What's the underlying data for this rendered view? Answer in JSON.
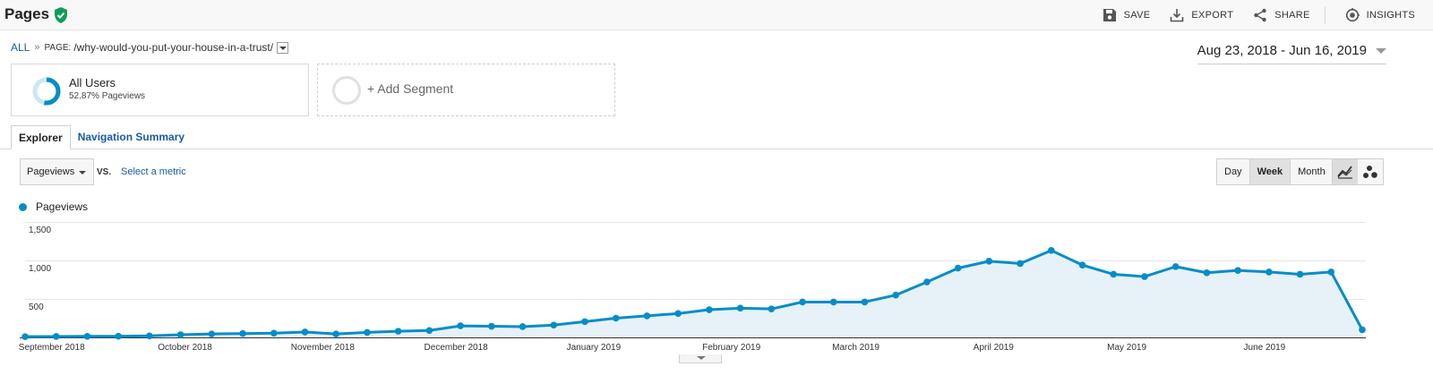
{
  "header": {
    "title": "Pages",
    "actions": [
      {
        "label": "SAVE",
        "icon": "save-icon"
      },
      {
        "label": "EXPORT",
        "icon": "export-icon"
      },
      {
        "label": "SHARE",
        "icon": "share-icon"
      },
      {
        "label": "INSIGHTS",
        "icon": "insights-icon"
      }
    ]
  },
  "breadcrumb": {
    "all": "ALL",
    "separator": "»",
    "page_label": "PAGE:",
    "page_value": "/why-would-you-put-your-house-in-a-trust/"
  },
  "date_range": "Aug 23, 2018 - Jun 16, 2019",
  "segments": {
    "all_users": {
      "name": "All Users",
      "subtitle": "52.87% Pageviews",
      "share": 0.5287
    },
    "add_segment": "+ Add Segment"
  },
  "tabs": [
    {
      "label": "Explorer",
      "active": true
    },
    {
      "label": "Navigation Summary",
      "active": false
    }
  ],
  "controls": {
    "metric": "Pageviews",
    "vs": "VS.",
    "select_metric": "Select a metric",
    "periods": [
      {
        "label": "Day",
        "active": false
      },
      {
        "label": "Week",
        "active": true
      },
      {
        "label": "Month",
        "active": false
      }
    ]
  },
  "colors": {
    "series": "#058dc7",
    "fill": "#e6f2f8",
    "link": "#1a5aa8",
    "verified": "#0f9d58"
  },
  "chart_data": {
    "type": "line",
    "series": [
      {
        "name": "Pageviews",
        "values": [
          10,
          12,
          14,
          15,
          20,
          35,
          45,
          50,
          55,
          70,
          45,
          65,
          80,
          90,
          150,
          145,
          140,
          160,
          205,
          250,
          280,
          310,
          360,
          380,
          370,
          460,
          460,
          460,
          550,
          720,
          900,
          990,
          960,
          1130,
          940,
          820,
          790,
          920,
          840,
          870,
          850,
          820,
          850,
          100
        ]
      }
    ],
    "x_start": "2018-08-26",
    "x_interval": "week",
    "x_ticks": [
      "September 2018",
      "October 2018",
      "November 2018",
      "December 2018",
      "January 2019",
      "February 2019",
      "March 2019",
      "April 2019",
      "May 2019",
      "June 2019"
    ],
    "y_ticks": [
      "1,500",
      "1,000",
      "500"
    ],
    "ylim": [
      0,
      1500
    ],
    "grid": true
  }
}
